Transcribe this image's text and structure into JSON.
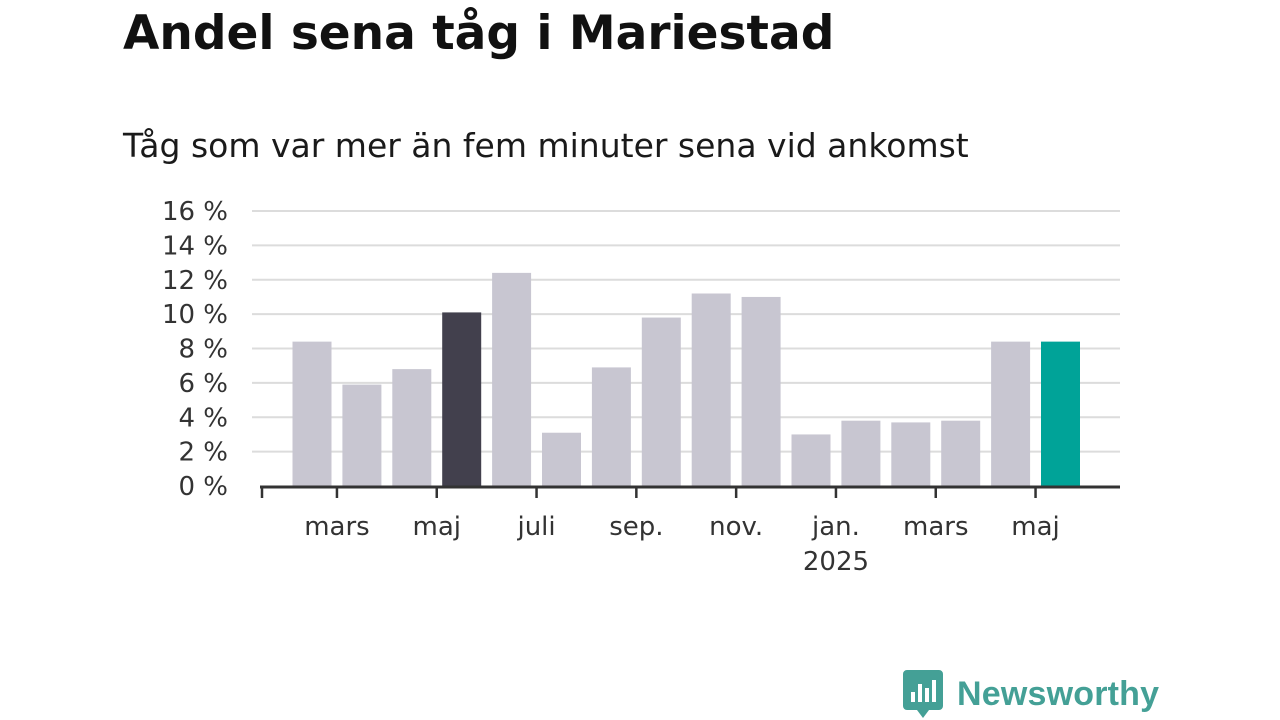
{
  "title": "Andel sena tåg i Mariestad",
  "subtitle": "Tåg som var mer än fem minuter sena vid ankomst",
  "brand": {
    "name": "Newsworthy",
    "color": "#44a096"
  },
  "colors": {
    "default_bar": "#c8c6d1",
    "highlight_bar": "#42404d",
    "latest_bar": "#00a398",
    "gridline": "#dcdcdc",
    "axis": "#333333"
  },
  "chart_data": {
    "type": "bar",
    "title": "",
    "xlabel": "",
    "ylabel": "",
    "ylim": [
      0,
      16
    ],
    "yticks": [
      0,
      2,
      4,
      6,
      8,
      10,
      12,
      14,
      16
    ],
    "ytick_labels": [
      "0 %",
      "2 %",
      "4 %",
      "6 %",
      "8 %",
      "10 %",
      "12 %",
      "14 %",
      "16 %"
    ],
    "grid": true,
    "legend": false,
    "categories": [
      "2024-02",
      "2024-03",
      "2024-04",
      "2024-05",
      "2024-06",
      "2024-07",
      "2024-08",
      "2024-09",
      "2024-10",
      "2024-11",
      "2024-12",
      "2025-01",
      "2025-02",
      "2025-03",
      "2025-04",
      "2025-05"
    ],
    "values": [
      8.4,
      5.9,
      6.8,
      10.1,
      12.4,
      3.1,
      6.9,
      9.8,
      11.2,
      11.0,
      3.0,
      3.8,
      3.7,
      3.8,
      8.4,
      8.4
    ],
    "highlight": {
      "2024-05": "previous-year",
      "2025-05": "latest"
    },
    "xtick_labels": [
      {
        "category": "2024-03",
        "label": "mars",
        "sublabel": ""
      },
      {
        "category": "2024-05",
        "label": "maj",
        "sublabel": ""
      },
      {
        "category": "2024-07",
        "label": "juli",
        "sublabel": ""
      },
      {
        "category": "2024-09",
        "label": "sep.",
        "sublabel": ""
      },
      {
        "category": "2024-11",
        "label": "nov.",
        "sublabel": ""
      },
      {
        "category": "2025-01",
        "label": "jan.",
        "sublabel": "2025"
      },
      {
        "category": "2025-03",
        "label": "mars",
        "sublabel": ""
      },
      {
        "category": "2025-05",
        "label": "maj",
        "sublabel": ""
      }
    ]
  }
}
